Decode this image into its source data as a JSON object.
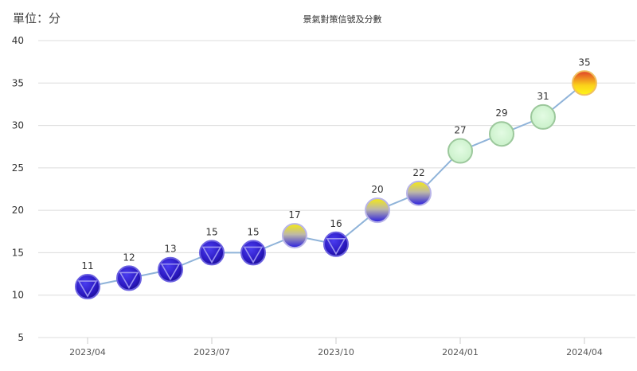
{
  "header": {
    "unit_label": "單位：分",
    "title": "景氣對策信號及分數"
  },
  "colors": {
    "line": "#8fb3d9",
    "grid": "#dcdcdc",
    "blue_signal": "#2d1ec8",
    "yellow_blue_signal_top": "#f2e51a",
    "yellow_blue_signal_bottom": "#2a20d8",
    "green_signal": "#d2f5d2",
    "red_signal_top": "#e8452a",
    "red_signal_bottom": "#fff21a"
  },
  "chart_data": {
    "type": "line",
    "title": "景氣對策信號及分數",
    "ylabel": "單位：分",
    "xlabel": "",
    "ylim": [
      5,
      40
    ],
    "yticks": [
      5,
      10,
      15,
      20,
      25,
      30,
      35,
      40
    ],
    "xtick_labels": [
      "2023/04",
      "2023/07",
      "2023/10",
      "2024/01",
      "2024/04"
    ],
    "grid": true,
    "legend": "none",
    "x": [
      "2023/04",
      "2023/05",
      "2023/06",
      "2023/07",
      "2023/08",
      "2023/09",
      "2023/10",
      "2023/11",
      "2023/12",
      "2024/01",
      "2024/02",
      "2024/03",
      "2024/04"
    ],
    "values": [
      11,
      12,
      13,
      15,
      15,
      17,
      16,
      20,
      22,
      27,
      29,
      31,
      35
    ],
    "signals": [
      "blue",
      "blue",
      "blue",
      "blue",
      "blue",
      "yellow-blue",
      "blue",
      "yellow-blue",
      "yellow-blue",
      "green",
      "green",
      "green",
      "yellow-red"
    ]
  }
}
